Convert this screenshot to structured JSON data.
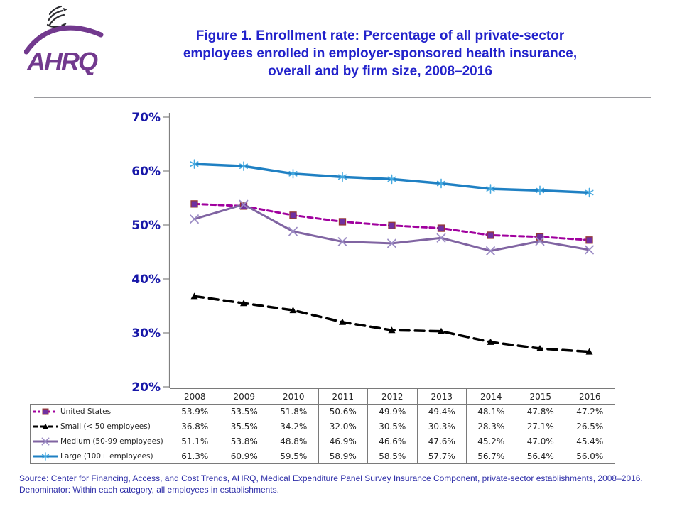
{
  "header": {
    "logo_text": "AHRQ",
    "title_lines": [
      "Figure 1. Enrollment rate: Percentage of all private-sector",
      "employees enrolled in employer-sponsored health insurance,",
      "overall and by firm size, 2008–2016"
    ]
  },
  "chart_data": {
    "type": "line",
    "title": "Figure 1. Enrollment rate: Percentage of all private-sector employees enrolled in employer-sponsored health insurance, overall and by firm size, 2008–2016",
    "categories": [
      "2008",
      "2009",
      "2010",
      "2011",
      "2012",
      "2013",
      "2014",
      "2015",
      "2016"
    ],
    "ylim": [
      20,
      70
    ],
    "yticks": [
      20,
      30,
      40,
      50,
      60,
      70
    ],
    "ytick_suffix": "%",
    "grid": false,
    "legend_position": "table-left-column",
    "axis_color": "#808080",
    "tick_label_color": "#1717a8",
    "value_format": "one-decimal-percent",
    "series": [
      {
        "name": "United States",
        "values": [
          53.9,
          53.5,
          51.8,
          50.6,
          49.9,
          49.4,
          48.1,
          47.8,
          47.2
        ],
        "color": "#a0009e",
        "line_style": "dashed",
        "line_width": 3,
        "marker": "square",
        "marker_color": "#7030a0",
        "marker_border": "#953735"
      },
      {
        "name": "Small (< 50 employees)",
        "values": [
          36.8,
          35.5,
          34.2,
          32.0,
          30.5,
          30.3,
          28.3,
          27.1,
          26.5
        ],
        "color": "#000000",
        "line_style": "long-dashed",
        "line_width": 3.5,
        "marker": "triangle",
        "marker_color": "#000000",
        "marker_border": "#000000"
      },
      {
        "name": "Medium (50-99 employees)",
        "values": [
          51.1,
          53.8,
          48.8,
          46.9,
          46.6,
          47.6,
          45.2,
          47.0,
          45.4
        ],
        "color": "#8064a2",
        "line_style": "solid",
        "line_width": 3,
        "marker": "x",
        "marker_color": "#9b8bc4",
        "marker_border": "#9b8bc4"
      },
      {
        "name": "Large (100+ employees)",
        "values": [
          61.3,
          60.9,
          59.5,
          58.9,
          58.5,
          57.7,
          56.7,
          56.4,
          56.0
        ],
        "color": "#1f80c3",
        "line_style": "solid",
        "line_width": 3.5,
        "marker": "asterisk",
        "marker_color": "#45a9e0",
        "marker_border": "#45a9e0"
      }
    ]
  },
  "footer": {
    "line1": "Source: Center for Financing, Access, and Cost Trends, AHRQ, Medical Expenditure Panel Survey Insurance Component, private-sector establishments, 2008–2016.",
    "line2": "Denominator: Within each category, all employees in establishments."
  },
  "colors": {
    "title_blue": "#2222cb",
    "footer_blue": "#2e2ea8",
    "table_border": "#7a7a7a",
    "logo_purple": "#72398e"
  }
}
